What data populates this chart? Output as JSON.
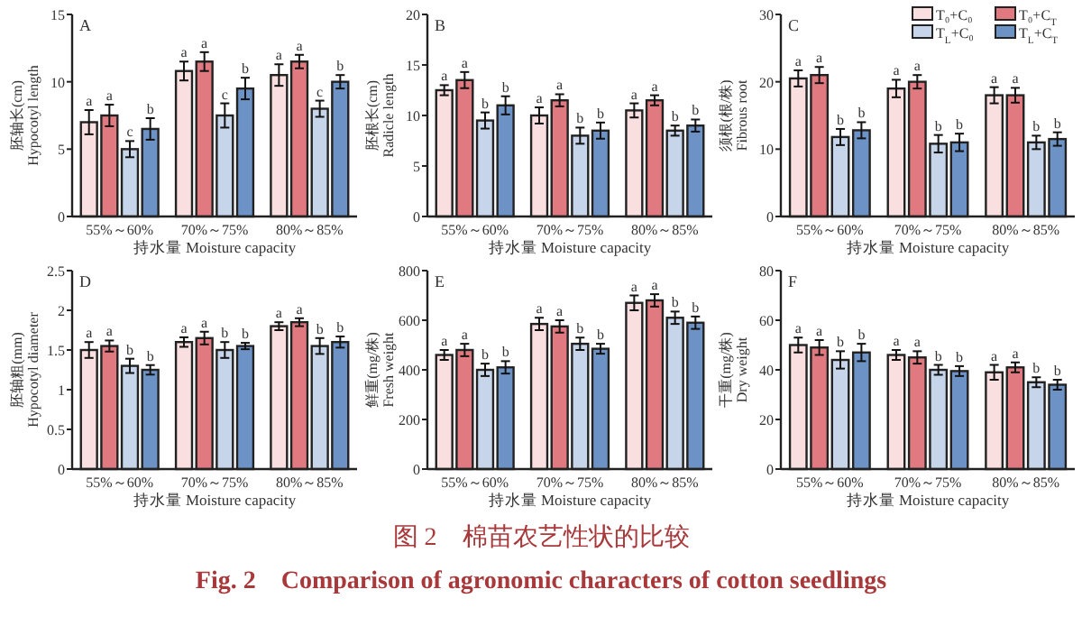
{
  "chart_data": [
    {
      "type": "bar",
      "title": "A",
      "ylabel": "胚轴长(cm)\nHypocotyl length",
      "xlabel": "持水量 Moisture capacity",
      "categories": [
        "55%～60%",
        "70%～75%",
        "80%～85%"
      ],
      "ylim": [
        0,
        15
      ],
      "yticks": [
        0,
        5,
        10,
        15
      ],
      "legend": false,
      "series": [
        {
          "color": "#f9dfe0",
          "values": [
            7.0,
            10.8,
            10.5
          ],
          "errors": [
            0.9,
            0.7,
            0.8
          ],
          "value_labels": [
            "a",
            "a",
            "a"
          ]
        },
        {
          "color": "#e07a80",
          "values": [
            7.5,
            11.5,
            11.5
          ],
          "errors": [
            0.8,
            0.7,
            0.5
          ],
          "value_labels": [
            "a",
            "a",
            "a"
          ]
        },
        {
          "color": "#c6d5ea",
          "values": [
            5.0,
            7.5,
            8.0
          ],
          "errors": [
            0.6,
            0.9,
            0.6
          ],
          "value_labels": [
            "c",
            "c",
            "c"
          ]
        },
        {
          "color": "#6d93c6",
          "values": [
            6.5,
            9.5,
            10.0
          ],
          "errors": [
            0.8,
            0.8,
            0.5
          ],
          "value_labels": [
            "b",
            "b",
            "b"
          ]
        }
      ]
    },
    {
      "type": "bar",
      "title": "B",
      "ylabel": "胚根长(cm)\nRadicle length",
      "xlabel": "持水量 Moisture capacity",
      "categories": [
        "55%～60%",
        "70%～75%",
        "80%～85%"
      ],
      "ylim": [
        0,
        20
      ],
      "yticks": [
        0,
        5,
        10,
        15,
        20
      ],
      "legend": false,
      "series": [
        {
          "color": "#f9dfe0",
          "values": [
            12.5,
            10.0,
            10.5
          ],
          "errors": [
            0.5,
            0.8,
            0.7
          ],
          "value_labels": [
            "a",
            "a",
            "a"
          ]
        },
        {
          "color": "#e07a80",
          "values": [
            13.5,
            11.5,
            11.5
          ],
          "errors": [
            0.8,
            0.6,
            0.5
          ],
          "value_labels": [
            "a",
            "a",
            "a"
          ]
        },
        {
          "color": "#c6d5ea",
          "values": [
            9.5,
            8.0,
            8.5
          ],
          "errors": [
            0.8,
            0.8,
            0.5
          ],
          "value_labels": [
            "b",
            "b",
            "b"
          ]
        },
        {
          "color": "#6d93c6",
          "values": [
            11.0,
            8.5,
            9.0
          ],
          "errors": [
            0.9,
            0.8,
            0.6
          ],
          "value_labels": [
            "b",
            "b",
            "b"
          ]
        }
      ]
    },
    {
      "type": "bar",
      "title": "C",
      "ylabel": "须根(根/株)\nFibrous root",
      "xlabel": "持水量 Moisture capacity",
      "categories": [
        "55%～60%",
        "70%～75%",
        "80%～85%"
      ],
      "ylim": [
        0,
        30
      ],
      "yticks": [
        0,
        10,
        20,
        30
      ],
      "legend": "top right",
      "series": [
        {
          "name": "T₀+C₀",
          "color": "#f9dfe0",
          "values": [
            20.5,
            19.0,
            18.0
          ],
          "errors": [
            1.2,
            1.3,
            1.2
          ],
          "value_labels": [
            "a",
            "a",
            "a"
          ]
        },
        {
          "name": "T₀+C$_{T}$",
          "color": "#e07a80",
          "values": [
            21.0,
            20.0,
            18.0
          ],
          "errors": [
            1.2,
            1.0,
            1.1
          ],
          "value_labels": [
            "a",
            "a",
            "a"
          ]
        },
        {
          "name": "T$_{L}$+C₀",
          "color": "#c6d5ea",
          "values": [
            11.8,
            10.8,
            11.0
          ],
          "errors": [
            1.2,
            1.3,
            1.0
          ],
          "value_labels": [
            "b",
            "b",
            "b"
          ]
        },
        {
          "name": "T$_{L}$+C$_{T}$",
          "color": "#6d93c6",
          "values": [
            12.8,
            11.0,
            11.5
          ],
          "errors": [
            1.2,
            1.3,
            1.0
          ],
          "value_labels": [
            "b",
            "b",
            "b"
          ]
        }
      ]
    },
    {
      "type": "bar",
      "title": "D",
      "ylabel": "胚轴粗(mm)\nHypocotyl diameter",
      "xlabel": "持水量 Moisture capacity",
      "categories": [
        "55%～60%",
        "70%～75%",
        "80%～85%"
      ],
      "ylim": [
        0,
        2.5
      ],
      "yticks": [
        0,
        0.5,
        1.0,
        1.5,
        2.0,
        2.5
      ],
      "legend": false,
      "series": [
        {
          "color": "#f9dfe0",
          "values": [
            1.5,
            1.6,
            1.8
          ],
          "errors": [
            0.1,
            0.06,
            0.05
          ],
          "value_labels": [
            "a",
            "a",
            "a"
          ]
        },
        {
          "color": "#e07a80",
          "values": [
            1.55,
            1.65,
            1.85
          ],
          "errors": [
            0.07,
            0.08,
            0.05
          ],
          "value_labels": [
            "a",
            "a",
            "a"
          ]
        },
        {
          "color": "#c6d5ea",
          "values": [
            1.3,
            1.5,
            1.55
          ],
          "errors": [
            0.09,
            0.1,
            0.1
          ],
          "value_labels": [
            "b",
            "b",
            "b"
          ]
        },
        {
          "color": "#6d93c6",
          "values": [
            1.25,
            1.55,
            1.6
          ],
          "errors": [
            0.06,
            0.04,
            0.07
          ],
          "value_labels": [
            "b",
            "b",
            "b"
          ]
        }
      ]
    },
    {
      "type": "bar",
      "title": "E",
      "ylabel": "鲜重(mg/株)\nFresh weight",
      "xlabel": "持水量 Moisture capacity",
      "categories": [
        "55%～60%",
        "70%～75%",
        "80%～85%"
      ],
      "ylim": [
        0,
        800
      ],
      "yticks": [
        0,
        200,
        400,
        600,
        800
      ],
      "legend": false,
      "series": [
        {
          "color": "#f9dfe0",
          "values": [
            460,
            585,
            670
          ],
          "errors": [
            20,
            25,
            30
          ],
          "value_labels": [
            "a",
            "a",
            "a"
          ]
        },
        {
          "color": "#e07a80",
          "values": [
            480,
            575,
            680
          ],
          "errors": [
            25,
            25,
            25
          ],
          "value_labels": [
            "a",
            "a",
            "a"
          ]
        },
        {
          "color": "#c6d5ea",
          "values": [
            400,
            505,
            610
          ],
          "errors": [
            25,
            25,
            25
          ],
          "value_labels": [
            "b",
            "b",
            "b"
          ]
        },
        {
          "color": "#6d93c6",
          "values": [
            410,
            485,
            590
          ],
          "errors": [
            25,
            20,
            25
          ],
          "value_labels": [
            "b",
            "b",
            "b"
          ]
        }
      ]
    },
    {
      "type": "bar",
      "title": "F",
      "ylabel": "干重(mg/株)\nDry weight",
      "xlabel": "持水量 Moisture capacity",
      "categories": [
        "55%～60%",
        "70%～75%",
        "80%～85%"
      ],
      "ylim": [
        0,
        80
      ],
      "yticks": [
        0,
        20,
        40,
        60,
        80
      ],
      "legend": false,
      "series": [
        {
          "color": "#f9dfe0",
          "values": [
            50,
            46,
            39
          ],
          "errors": [
            3,
            2,
            3
          ],
          "value_labels": [
            "a",
            "a",
            "a"
          ]
        },
        {
          "color": "#e07a80",
          "values": [
            49,
            45,
            41
          ],
          "errors": [
            3,
            2.5,
            2
          ],
          "value_labels": [
            "a",
            "a",
            "a"
          ]
        },
        {
          "color": "#c6d5ea",
          "values": [
            44,
            40,
            35
          ],
          "errors": [
            3.5,
            2,
            2
          ],
          "value_labels": [
            "b",
            "b",
            "b"
          ]
        },
        {
          "color": "#6d93c6",
          "values": [
            47,
            39.5,
            34
          ],
          "errors": [
            3.5,
            2,
            2
          ],
          "value_labels": [
            "b",
            "b",
            "b"
          ]
        }
      ],
      "annotations": [
        "图 2　棉苗农艺性状的比较",
        "Fig. 2　Comparison of agronomic characters of cotton seedlings"
      ]
    }
  ]
}
